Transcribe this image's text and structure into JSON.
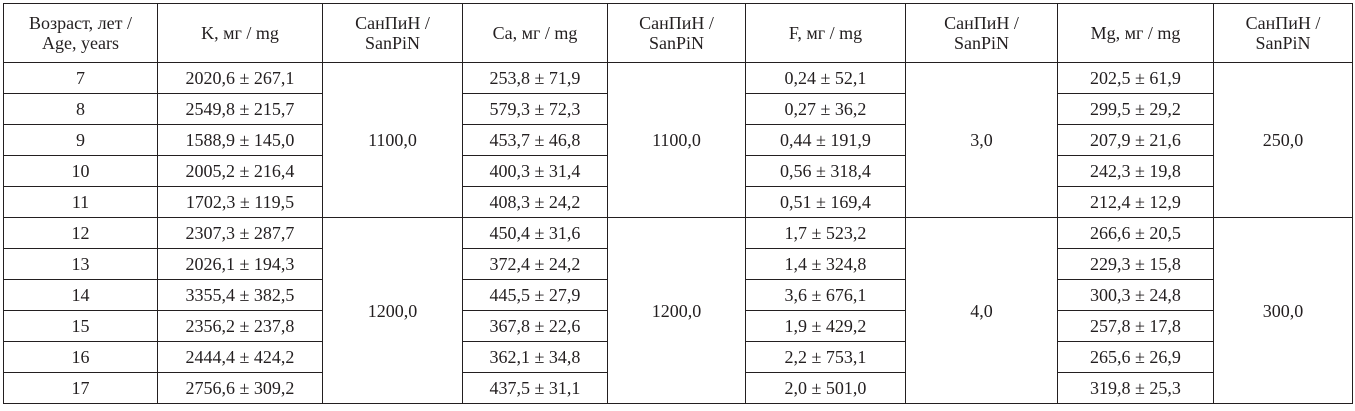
{
  "table": {
    "header": [
      "Возраст, лет /\nAge, years",
      "K, мг / mg",
      "СанПиН /\nSanPiN",
      "Ca, мг / mg",
      "СанПиН /\nSanPiN",
      "F, мг / mg",
      "СанПиН /\nSanPiN",
      "Mg, мг / mg",
      "СанПиН /\nSanPiN"
    ],
    "groups": [
      {
        "norms": [
          "1100,0",
          "1100,0",
          "3,0",
          "250,0"
        ],
        "rows": [
          [
            "7",
            "2020,6 ± 267,1",
            "253,8 ± 71,9",
            "0,24 ± 52,1",
            "202,5 ± 61,9"
          ],
          [
            "8",
            "2549,8 ± 215,7",
            "579,3 ± 72,3",
            "0,27 ± 36,2",
            "299,5 ± 29,2"
          ],
          [
            "9",
            "1588,9 ± 145,0",
            "453,7 ± 46,8",
            "0,44 ± 191,9",
            "207,9 ± 21,6"
          ],
          [
            "10",
            "2005,2 ± 216,4",
            "400,3 ± 31,4",
            "0,56 ± 318,4",
            "242,3 ± 19,8"
          ],
          [
            "11",
            "1702,3 ± 119,5",
            "408,3 ± 24,2",
            "0,51 ± 169,4",
            "212,4 ± 12,9"
          ]
        ]
      },
      {
        "norms": [
          "1200,0",
          "1200,0",
          "4,0",
          "300,0"
        ],
        "rows": [
          [
            "12",
            "2307,3 ± 287,7",
            "450,4 ± 31,6",
            "1,7 ± 523,2",
            "266,6 ± 20,5"
          ],
          [
            "13",
            "2026,1 ± 194,3",
            "372,4 ± 24,2",
            "1,4 ± 324,8",
            "229,3 ± 15,8"
          ],
          [
            "14",
            "3355,4 ± 382,5",
            "445,5 ± 27,9",
            "3,6 ± 676,1",
            "300,3 ± 24,8"
          ],
          [
            "15",
            "2356,2 ± 237,8",
            "367,8 ± 22,6",
            "1,9 ± 429,2",
            "257,8 ± 17,8"
          ],
          [
            "16",
            "2444,4 ± 424,2",
            "362,1 ± 34,8",
            "2,2 ± 753,1",
            "265,6 ± 26,9"
          ],
          [
            "17",
            "2756,6 ± 309,2",
            "437,5 ± 31,1",
            "2,0 ± 501,0",
            "319,8 ± 25,3"
          ]
        ]
      }
    ]
  }
}
